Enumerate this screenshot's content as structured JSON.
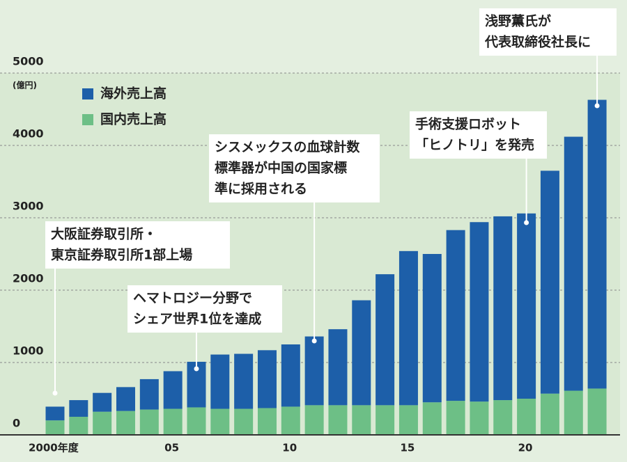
{
  "chart_data": {
    "type": "stacked_bar",
    "unit_label": "(億円)",
    "categories": [
      "2000年度",
      null,
      null,
      null,
      null,
      "05",
      null,
      null,
      null,
      null,
      "10",
      null,
      null,
      null,
      null,
      "15",
      null,
      null,
      null,
      null,
      "20",
      null,
      null,
      null
    ],
    "series": [
      {
        "name": "国内売上高",
        "color": "#6dbf86",
        "values": [
          200,
          250,
          320,
          330,
          350,
          360,
          380,
          360,
          360,
          370,
          390,
          410,
          410,
          410,
          410,
          410,
          450,
          470,
          460,
          480,
          500,
          570,
          610,
          640
        ]
      },
      {
        "name": "海外売上高",
        "color": "#1d5fa9",
        "values": [
          190,
          230,
          260,
          330,
          420,
          520,
          630,
          750,
          760,
          800,
          860,
          950,
          1050,
          1450,
          1810,
          2130,
          2050,
          2360,
          2480,
          2540,
          2560,
          3080,
          3510,
          3990
        ]
      }
    ],
    "ylim": [
      0,
      5000
    ],
    "yticks": [
      0,
      1000,
      2000,
      3000,
      4000,
      5000
    ],
    "grid": true,
    "annotations": [
      {
        "lines": [
          "大阪証券取引所・",
          "東京証券取引所1部上場"
        ]
      },
      {
        "lines": [
          "ヘマトロジー分野で",
          "シェア世界1位を達成"
        ]
      },
      {
        "lines": [
          "シスメックスの血球計数",
          "標準器が中国の国家標",
          "準に採用される"
        ]
      },
      {
        "lines": [
          "手術支援ロボット",
          "「ヒノトリ」を発売"
        ]
      },
      {
        "lines": [
          "浅野薫氏が",
          "代表取締役社長に"
        ]
      }
    ]
  }
}
